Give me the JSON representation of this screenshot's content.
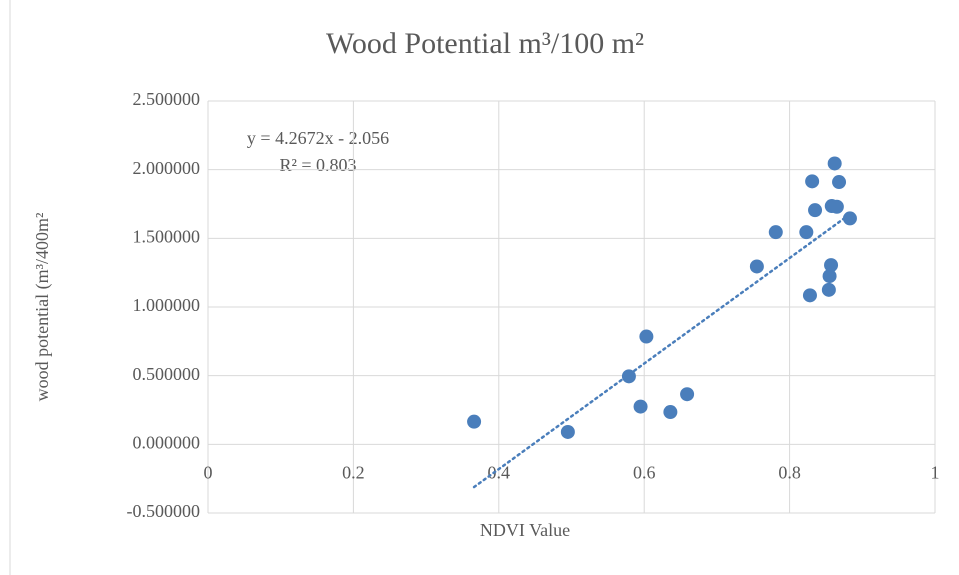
{
  "chart_data": {
    "type": "scatter",
    "title": "Wood Potential m³/100 m²",
    "x_label": "NDVI Value",
    "y_label": "wood potential (m³/400m²",
    "annotations": [
      "y = 4.2672x - 2.056",
      "R² = 0.803"
    ],
    "color": "#4a7ebb",
    "grid": true,
    "trendline": "linear",
    "x": [
      0.366,
      0.495,
      0.579,
      0.595,
      0.603,
      0.636,
      0.659,
      0.755,
      0.781,
      0.823,
      0.828,
      0.831,
      0.835,
      0.854,
      0.855,
      0.857,
      0.858,
      0.862,
      0.865,
      0.868,
      0.883
    ],
    "values": [
      0.165,
      0.09,
      0.495,
      0.275,
      0.785,
      0.235,
      0.365,
      1.295,
      1.545,
      1.545,
      1.085,
      1.915,
      1.705,
      1.125,
      1.225,
      1.305,
      1.735,
      2.045,
      1.73,
      1.91,
      1.645
    ],
    "xlim": [
      0,
      1
    ],
    "xticks": [
      0,
      0.2,
      0.4,
      0.6,
      0.8,
      1
    ],
    "ylim": [
      -0.5,
      2.5
    ],
    "yticks": [
      {
        "value": -0.5,
        "label": "-0.500000"
      },
      {
        "value": 0,
        "label": "0.000000"
      },
      {
        "value": 0.5,
        "label": "0.500000"
      },
      {
        "value": 1,
        "label": "1.000000"
      },
      {
        "value": 1.5,
        "label": "1.500000"
      },
      {
        "value": 2,
        "label": "2.000000"
      },
      {
        "value": 2.5,
        "label": "2.500000"
      }
    ]
  }
}
